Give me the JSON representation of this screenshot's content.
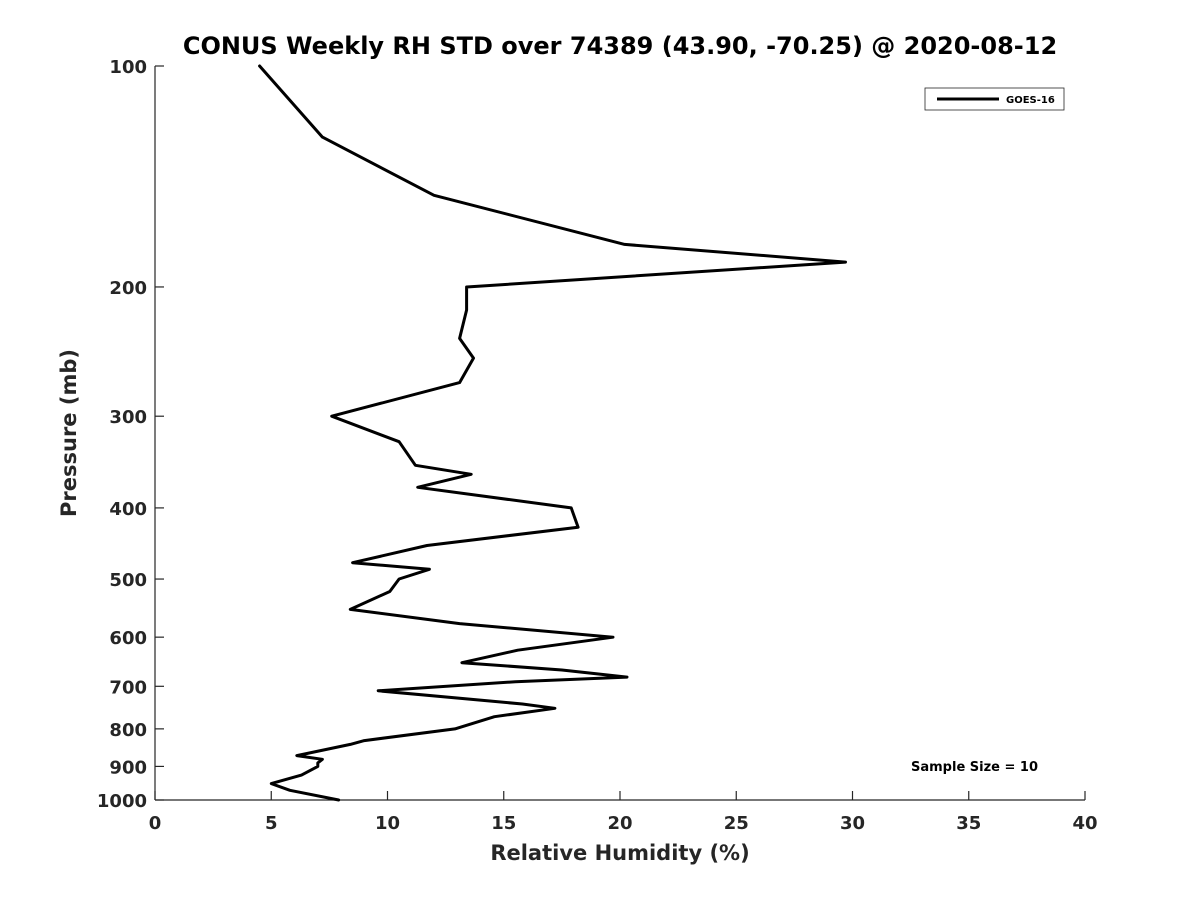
{
  "chart_data": {
    "type": "line",
    "title": "CONUS Weekly RH STD over 74389 (43.90, -70.25) @ 2020-08-12",
    "xlabel": "Relative Humidity (%)",
    "ylabel": "Pressure (mb)",
    "xlim": [
      0,
      40
    ],
    "ylim": [
      100,
      1000
    ],
    "y_scale": "log",
    "y_reversed": true,
    "x_ticks": [
      "0",
      "5",
      "10",
      "15",
      "20",
      "25",
      "30",
      "35",
      "40"
    ],
    "y_ticks": [
      "100",
      "200",
      "300",
      "400",
      "500",
      "600",
      "700",
      "800",
      "900",
      "1000"
    ],
    "grid": false,
    "legend_position": "top-right",
    "series": [
      {
        "name": "GOES-16",
        "color": "#000000",
        "points": [
          [
            4.5,
            100
          ],
          [
            7.2,
            125
          ],
          [
            12.0,
            150
          ],
          [
            20.2,
            175
          ],
          [
            29.7,
            185
          ],
          [
            13.4,
            200
          ],
          [
            13.4,
            215
          ],
          [
            13.1,
            235
          ],
          [
            13.7,
            250
          ],
          [
            13.1,
            270
          ],
          [
            7.6,
            300
          ],
          [
            10.5,
            325
          ],
          [
            11.2,
            350
          ],
          [
            13.6,
            360
          ],
          [
            11.3,
            375
          ],
          [
            17.9,
            400
          ],
          [
            18.2,
            425
          ],
          [
            11.7,
            450
          ],
          [
            8.5,
            475
          ],
          [
            11.8,
            485
          ],
          [
            10.5,
            500
          ],
          [
            10.1,
            520
          ],
          [
            8.4,
            550
          ],
          [
            13.1,
            575
          ],
          [
            19.7,
            600
          ],
          [
            15.6,
            625
          ],
          [
            13.2,
            650
          ],
          [
            17.5,
            665
          ],
          [
            20.3,
            680
          ],
          [
            15.5,
            690
          ],
          [
            9.6,
            710
          ],
          [
            15.8,
            740
          ],
          [
            17.2,
            750
          ],
          [
            14.6,
            770
          ],
          [
            12.9,
            800
          ],
          [
            9.0,
            830
          ],
          [
            8.4,
            840
          ],
          [
            6.1,
            870
          ],
          [
            7.2,
            880
          ],
          [
            7.0,
            890
          ],
          [
            7.0,
            900
          ],
          [
            6.3,
            925
          ],
          [
            5.0,
            950
          ],
          [
            5.8,
            970
          ],
          [
            7.9,
            1000
          ]
        ]
      }
    ],
    "annotations": [
      "Sample Size = 10"
    ]
  }
}
